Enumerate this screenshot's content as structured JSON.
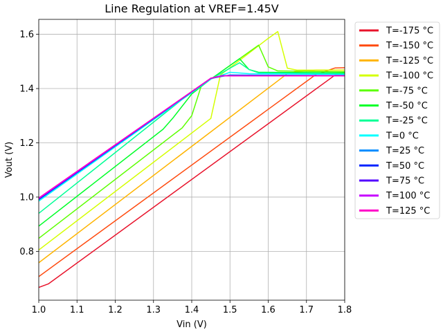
{
  "chart_data": {
    "type": "line",
    "title": "Line Regulation at VREF=1.45V",
    "xlabel": "Vin (V)",
    "ylabel": "Vout (V)",
    "xlim": [
      1.0,
      1.8
    ],
    "ylim": [
      0.62,
      1.655
    ],
    "xticks": [
      "1.0",
      "1.1",
      "1.2",
      "1.3",
      "1.4",
      "1.5",
      "1.6",
      "1.7",
      "1.8"
    ],
    "yticks": [
      "0.8",
      "1.0",
      "1.2",
      "1.4",
      "1.6"
    ],
    "grid": true,
    "legend_position": "outside-right",
    "series": [
      {
        "name": "T=-175 °C",
        "color": "#e8132b",
        "points": [
          [
            1.0,
            0.667
          ],
          [
            1.025,
            0.68
          ],
          [
            1.775,
            1.45
          ],
          [
            1.8,
            1.45
          ]
        ]
      },
      {
        "name": "T=-150 °C",
        "color": "#ff4a0f",
        "points": [
          [
            1.0,
            0.707
          ],
          [
            1.725,
            1.452
          ],
          [
            1.775,
            1.476
          ],
          [
            1.8,
            1.477
          ]
        ]
      },
      {
        "name": "T=-125 °C",
        "color": "#ffb400",
        "points": [
          [
            1.0,
            0.758
          ],
          [
            1.65,
            1.455
          ],
          [
            1.675,
            1.462
          ],
          [
            1.725,
            1.468
          ],
          [
            1.8,
            1.468
          ]
        ]
      },
      {
        "name": "T=-100 °C",
        "color": "#d4ff00",
        "points": [
          [
            1.0,
            0.805
          ],
          [
            1.45,
            1.29
          ],
          [
            1.475,
            1.45
          ],
          [
            1.6,
            1.585
          ],
          [
            1.625,
            1.61
          ],
          [
            1.65,
            1.475
          ],
          [
            1.675,
            1.468
          ],
          [
            1.8,
            1.468
          ]
        ]
      },
      {
        "name": "T=-75 °C",
        "color": "#5cff00",
        "points": [
          [
            1.0,
            0.848
          ],
          [
            1.375,
            1.255
          ],
          [
            1.4,
            1.3
          ],
          [
            1.425,
            1.41
          ],
          [
            1.45,
            1.435
          ],
          [
            1.575,
            1.56
          ],
          [
            1.6,
            1.48
          ],
          [
            1.625,
            1.465
          ],
          [
            1.8,
            1.462
          ]
        ]
      },
      {
        "name": "T=-50 °C",
        "color": "#00ff28",
        "points": [
          [
            1.0,
            0.893
          ],
          [
            1.325,
            1.25
          ],
          [
            1.35,
            1.29
          ],
          [
            1.4,
            1.38
          ],
          [
            1.45,
            1.435
          ],
          [
            1.525,
            1.51
          ],
          [
            1.55,
            1.47
          ],
          [
            1.575,
            1.46
          ],
          [
            1.8,
            1.458
          ]
        ]
      },
      {
        "name": "T=-25 °C",
        "color": "#00ff95",
        "points": [
          [
            1.0,
            0.94
          ],
          [
            1.375,
            1.36
          ],
          [
            1.45,
            1.435
          ],
          [
            1.525,
            1.495
          ],
          [
            1.55,
            1.47
          ],
          [
            1.575,
            1.458
          ],
          [
            1.8,
            1.455
          ]
        ]
      },
      {
        "name": "T=0 °C",
        "color": "#00ffff",
        "points": [
          [
            1.0,
            0.985
          ],
          [
            1.45,
            1.435
          ],
          [
            1.5,
            1.46
          ],
          [
            1.55,
            1.455
          ],
          [
            1.8,
            1.452
          ]
        ]
      },
      {
        "name": "T=25 °C",
        "color": "#008cff",
        "points": [
          [
            1.0,
            0.99
          ],
          [
            1.45,
            1.437
          ],
          [
            1.5,
            1.45
          ],
          [
            1.8,
            1.448
          ]
        ]
      },
      {
        "name": "T=50 °C",
        "color": "#0022ff",
        "points": [
          [
            1.0,
            0.992
          ],
          [
            1.45,
            1.438
          ],
          [
            1.48,
            1.448
          ],
          [
            1.8,
            1.447
          ]
        ]
      },
      {
        "name": "T=75 °C",
        "color": "#5200ff",
        "points": [
          [
            1.0,
            0.993
          ],
          [
            1.45,
            1.438
          ],
          [
            1.48,
            1.447
          ],
          [
            1.8,
            1.447
          ]
        ]
      },
      {
        "name": "T=100 °C",
        "color": "#c700ff",
        "points": [
          [
            1.0,
            0.995
          ],
          [
            1.45,
            1.438
          ],
          [
            1.48,
            1.447
          ],
          [
            1.8,
            1.447
          ]
        ]
      },
      {
        "name": "T=125 °C",
        "color": "#ff00c8",
        "points": [
          [
            1.0,
            0.997
          ],
          [
            1.45,
            1.438
          ],
          [
            1.48,
            1.447
          ],
          [
            1.8,
            1.447
          ]
        ]
      }
    ]
  }
}
